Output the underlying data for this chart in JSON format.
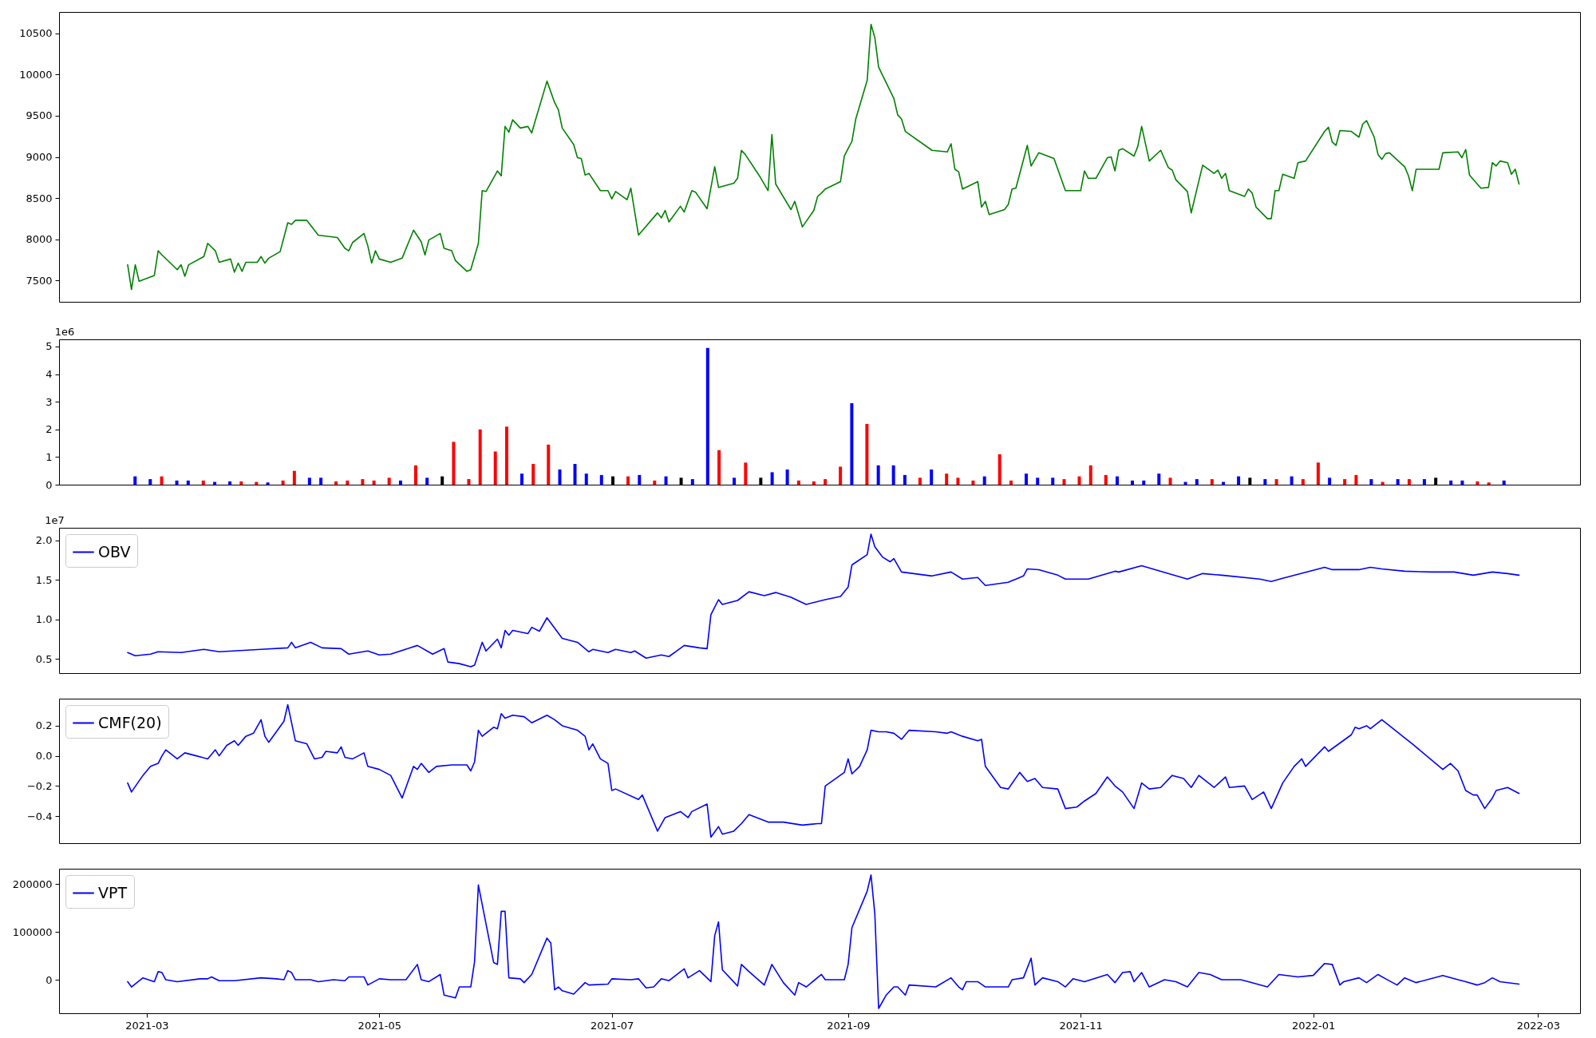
{
  "chart_data": [
    {
      "type": "line",
      "xlim": [
        "2021-02-06",
        "2022-03-12"
      ],
      "ylim": [
        7240,
        10760
      ],
      "yticks": [
        7500,
        8000,
        8500,
        9000,
        9500,
        10000,
        10500
      ],
      "tick_labels": "y",
      "x": [
        "2021-02-24",
        "2021-02-25",
        "2021-02-26",
        "2021-02-27",
        "2021-03-03",
        "2021-03-04",
        "2021-03-05",
        "2021-03-09",
        "2021-03-10",
        "2021-03-11",
        "2021-03-12",
        "2021-03-16",
        "2021-03-17",
        "2021-03-19",
        "2021-03-20",
        "2021-03-23",
        "2021-03-24",
        "2021-03-25",
        "2021-03-26",
        "2021-03-27",
        "2021-03-30",
        "2021-03-31",
        "2021-04-01",
        "2021-04-02",
        "2021-04-05",
        "2021-04-07",
        "2021-04-08",
        "2021-04-09",
        "2021-04-12",
        "2021-04-15",
        "2021-04-20",
        "2021-04-22",
        "2021-04-23",
        "2021-04-24",
        "2021-04-27",
        "2021-04-28",
        "2021-04-29",
        "2021-04-30",
        "2021-05-01",
        "2021-05-04",
        "2021-05-07",
        "2021-05-10",
        "2021-05-12",
        "2021-05-13",
        "2021-05-14",
        "2021-05-17",
        "2021-05-18",
        "2021-05-20",
        "2021-05-21",
        "2021-05-24",
        "2021-05-25",
        "2021-05-27",
        "2021-05-28",
        "2021-05-29",
        "2021-06-01",
        "2021-06-02",
        "2021-06-03",
        "2021-06-04",
        "2021-06-05",
        "2021-06-07",
        "2021-06-09",
        "2021-06-10",
        "2021-06-11",
        "2021-06-14",
        "2021-06-16",
        "2021-06-17",
        "2021-06-18",
        "2021-06-21",
        "2021-06-22",
        "2021-06-23",
        "2021-06-24",
        "2021-06-25",
        "2021-06-28",
        "2021-06-30",
        "2021-07-01",
        "2021-07-02",
        "2021-07-05",
        "2021-07-06",
        "2021-07-08",
        "2021-07-13",
        "2021-07-14",
        "2021-07-15",
        "2021-07-16",
        "2021-07-19",
        "2021-07-20",
        "2021-07-22",
        "2021-07-23",
        "2021-07-26",
        "2021-07-28",
        "2021-07-29",
        "2021-08-02",
        "2021-08-03",
        "2021-08-04",
        "2021-08-05",
        "2021-08-09",
        "2021-08-11",
        "2021-08-12",
        "2021-08-13",
        "2021-08-17",
        "2021-08-18",
        "2021-08-20",
        "2021-08-23",
        "2021-08-24",
        "2021-08-25",
        "2021-08-26",
        "2021-08-30",
        "2021-08-31",
        "2021-09-02",
        "2021-09-03",
        "2021-09-06",
        "2021-09-07",
        "2021-09-08",
        "2021-09-09",
        "2021-09-13",
        "2021-09-14",
        "2021-09-15",
        "2021-09-16",
        "2021-09-23",
        "2021-09-27",
        "2021-09-28",
        "2021-09-29",
        "2021-09-30",
        "2021-10-01",
        "2021-10-05",
        "2021-10-06",
        "2021-10-07",
        "2021-10-08",
        "2021-10-12",
        "2021-10-13",
        "2021-10-14",
        "2021-10-15",
        "2021-10-18",
        "2021-10-19",
        "2021-10-21",
        "2021-10-25",
        "2021-10-28",
        "2021-11-01",
        "2021-11-02",
        "2021-11-03",
        "2021-11-05",
        "2021-11-08",
        "2021-11-09",
        "2021-11-10",
        "2021-11-11",
        "2021-11-12",
        "2021-11-15",
        "2021-11-16",
        "2021-11-17",
        "2021-11-19",
        "2021-11-22",
        "2021-11-24",
        "2021-11-25",
        "2021-11-26",
        "2021-11-29",
        "2021-11-30",
        "2021-12-03",
        "2021-12-06",
        "2021-12-07",
        "2021-12-08",
        "2021-12-09",
        "2021-12-10",
        "2021-12-14",
        "2021-12-15",
        "2021-12-16",
        "2021-12-17",
        "2021-12-20",
        "2021-12-21",
        "2021-12-22",
        "2021-12-23",
        "2021-12-24",
        "2021-12-27",
        "2021-12-28",
        "2021-12-30",
        "2022-01-04",
        "2022-01-05",
        "2022-01-06",
        "2022-01-07",
        "2022-01-08",
        "2022-01-11",
        "2022-01-13",
        "2022-01-14",
        "2022-01-15",
        "2022-01-17",
        "2022-01-18",
        "2022-01-19",
        "2022-01-20",
        "2022-01-21",
        "2022-01-25",
        "2022-01-26",
        "2022-01-27",
        "2022-01-28",
        "2022-02-03",
        "2022-02-04",
        "2022-02-08",
        "2022-02-09",
        "2022-02-10",
        "2022-02-11",
        "2022-02-14",
        "2022-02-16",
        "2022-02-17",
        "2022-02-18",
        "2022-02-19",
        "2022-02-21",
        "2022-02-22",
        "2022-02-23",
        "2022-02-24"
      ],
      "series": [
        {
          "color": "#008000",
          "values": [
            7690,
            7390,
            7690,
            7490,
            7560,
            7860,
            7810,
            7630,
            7690,
            7550,
            7690,
            7790,
            7950,
            7860,
            7720,
            7760,
            7600,
            7710,
            7610,
            7720,
            7720,
            7790,
            7710,
            7770,
            7850,
            8200,
            8180,
            8230,
            8230,
            8050,
            8020,
            7890,
            7860,
            7960,
            8070,
            7920,
            7710,
            7860,
            7760,
            7720,
            7770,
            8110,
            7970,
            7810,
            7990,
            8070,
            7890,
            7860,
            7740,
            7610,
            7630,
            7950,
            8590,
            8580,
            8830,
            8770,
            9370,
            9300,
            9450,
            9350,
            9370,
            9290,
            9450,
            9920,
            9660,
            9570,
            9350,
            9150,
            8990,
            8980,
            8780,
            8800,
            8590,
            8590,
            8490,
            8580,
            8480,
            8620,
            8050,
            8320,
            8260,
            8350,
            8210,
            8400,
            8330,
            8590,
            8570,
            8370,
            8880,
            8630,
            8680,
            8740,
            9080,
            9030,
            8750,
            8590,
            9270,
            8670,
            8360,
            8460,
            8150,
            8350,
            8520,
            8560,
            8610,
            8700,
            9010,
            9190,
            9460,
            9930,
            10610,
            10450,
            10090,
            9710,
            9510,
            9460,
            9310,
            9080,
            9060,
            9160,
            8850,
            8820,
            8610,
            8700,
            8390,
            8460,
            8300,
            8360,
            8420,
            8610,
            8620,
            9140,
            8890,
            9050,
            8980,
            8590,
            8590,
            8830,
            8740,
            8740,
            8990,
            9000,
            8830,
            9080,
            9100,
            9010,
            9130,
            9370,
            8950,
            9080,
            8870,
            8840,
            8720,
            8580,
            8320,
            8900,
            8800,
            8840,
            8740,
            8800,
            8590,
            8520,
            8610,
            8560,
            8390,
            8250,
            8250,
            8590,
            8590,
            8790,
            8740,
            8930,
            8950,
            9310,
            9360,
            9180,
            9140,
            9320,
            9310,
            9240,
            9400,
            9440,
            9240,
            9030,
            8970,
            9040,
            9050,
            8880,
            8770,
            8590,
            8850,
            8850,
            9050,
            9060,
            8990,
            9090,
            8780,
            8620,
            8630,
            8930,
            8890,
            8950,
            8930,
            8790,
            8850,
            8670
          ]
        }
      ]
    },
    {
      "type": "bar",
      "xlim": [
        "2021-02-06",
        "2022-03-12"
      ],
      "ylim": [
        0,
        5.26
      ],
      "yticks": [
        0,
        1,
        2,
        3,
        4,
        5
      ],
      "tick_labels": "y",
      "annotations": [
        "1e6"
      ],
      "x": [
        "2021-02-25",
        "2021-03-01",
        "2021-03-04",
        "2021-03-08",
        "2021-03-11",
        "2021-03-15",
        "2021-03-18",
        "2021-03-22",
        "2021-03-25",
        "2021-03-29",
        "2021-04-01",
        "2021-04-05",
        "2021-04-08",
        "2021-04-12",
        "2021-04-15",
        "2021-04-19",
        "2021-04-22",
        "2021-04-26",
        "2021-04-29",
        "2021-05-03",
        "2021-05-06",
        "2021-05-10",
        "2021-05-13",
        "2021-05-17",
        "2021-05-20",
        "2021-05-24",
        "2021-05-27",
        "2021-05-31",
        "2021-06-03",
        "2021-06-07",
        "2021-06-10",
        "2021-06-14",
        "2021-06-17",
        "2021-06-21",
        "2021-06-24",
        "2021-06-28",
        "2021-07-01",
        "2021-07-05",
        "2021-07-08",
        "2021-07-12",
        "2021-07-15",
        "2021-07-19",
        "2021-07-22",
        "2021-07-26",
        "2021-07-29",
        "2021-08-02",
        "2021-08-05",
        "2021-08-09",
        "2021-08-12",
        "2021-08-16",
        "2021-08-19",
        "2021-08-23",
        "2021-08-26",
        "2021-08-30",
        "2021-09-02",
        "2021-09-06",
        "2021-09-09",
        "2021-09-13",
        "2021-09-16",
        "2021-09-20",
        "2021-09-23",
        "2021-09-27",
        "2021-09-30",
        "2021-10-04",
        "2021-10-07",
        "2021-10-11",
        "2021-10-14",
        "2021-10-18",
        "2021-10-21",
        "2021-10-25",
        "2021-10-28",
        "2021-11-01",
        "2021-11-04",
        "2021-11-08",
        "2021-11-11",
        "2021-11-15",
        "2021-11-18",
        "2021-11-22",
        "2021-11-25",
        "2021-11-29",
        "2021-12-02",
        "2021-12-06",
        "2021-12-09",
        "2021-12-13",
        "2021-12-16",
        "2021-12-20",
        "2021-12-23",
        "2021-12-27",
        "2021-12-30",
        "2022-01-03",
        "2022-01-06",
        "2022-01-10",
        "2022-01-13",
        "2022-01-17",
        "2022-01-20",
        "2022-01-24",
        "2022-01-27",
        "2022-01-31",
        "2022-02-03",
        "2022-02-07",
        "2022-02-10",
        "2022-02-14",
        "2022-02-17",
        "2022-02-21"
      ],
      "values": [
        0.3,
        0.2,
        0.3,
        0.15,
        0.15,
        0.15,
        0.1,
        0.12,
        0.12,
        0.1,
        0.08,
        0.15,
        0.5,
        0.25,
        0.25,
        0.12,
        0.15,
        0.2,
        0.15,
        0.25,
        0.15,
        0.7,
        0.25,
        0.3,
        1.55,
        0.2,
        2.0,
        1.2,
        2.1,
        0.4,
        0.75,
        1.45,
        0.55,
        0.75,
        0.4,
        0.35,
        0.3,
        0.3,
        0.35,
        0.15,
        0.3,
        0.25,
        0.2,
        4.95,
        1.25,
        0.25,
        0.8,
        0.25,
        0.45,
        0.55,
        0.15,
        0.12,
        0.2,
        0.65,
        2.95,
        2.2,
        0.7,
        0.7,
        0.35,
        0.25,
        0.55,
        0.4,
        0.25,
        0.15,
        0.3,
        1.1,
        0.15,
        0.4,
        0.25,
        0.25,
        0.2,
        0.3,
        0.7,
        0.35,
        0.3,
        0.15,
        0.15,
        0.4,
        0.25,
        0.1,
        0.2,
        0.2,
        0.1,
        0.3,
        0.25,
        0.2,
        0.2,
        0.3,
        0.2,
        0.8,
        0.25,
        0.2,
        0.35,
        0.2,
        0.1,
        0.2,
        0.2,
        0.2,
        0.25,
        0.15,
        0.15,
        0.12,
        0.08,
        0.15
      ],
      "colors": [
        "#0000ff",
        "#0000ff",
        "#ff0000",
        "#0000ff",
        "#0000ff",
        "#ff0000",
        "#0000ff",
        "#0000ff",
        "#ff0000",
        "#ff0000",
        "#0000ff",
        "#ff0000",
        "#ff0000",
        "#0000ff",
        "#0000ff",
        "#ff0000",
        "#ff0000",
        "#ff0000",
        "#ff0000",
        "#ff0000",
        "#0000ff",
        "#ff0000",
        "#0000ff",
        "#000000",
        "#ff0000",
        "#ff0000",
        "#ff0000",
        "#ff0000",
        "#ff0000",
        "#0000ff",
        "#ff0000",
        "#ff0000",
        "#0000ff",
        "#0000ff",
        "#0000ff",
        "#0000ff",
        "#000000",
        "#ff0000",
        "#0000ff",
        "#ff0000",
        "#0000ff",
        "#000000",
        "#0000ff",
        "#0000ff",
        "#ff0000",
        "#0000ff",
        "#ff0000",
        "#000000",
        "#0000ff",
        "#0000ff",
        "#ff0000",
        "#ff0000",
        "#ff0000",
        "#ff0000",
        "#0000ff",
        "#ff0000",
        "#0000ff",
        "#0000ff",
        "#0000ff",
        "#ff0000",
        "#0000ff",
        "#ff0000",
        "#ff0000",
        "#ff0000",
        "#0000ff",
        "#ff0000",
        "#ff0000",
        "#0000ff",
        "#0000ff",
        "#0000ff",
        "#ff0000",
        "#ff0000",
        "#ff0000",
        "#ff0000",
        "#0000ff",
        "#0000ff",
        "#0000ff",
        "#0000ff",
        "#ff0000",
        "#0000ff",
        "#0000ff",
        "#ff0000",
        "#0000ff",
        "#0000ff",
        "#000000",
        "#0000ff",
        "#ff0000",
        "#0000ff",
        "#ff0000",
        "#ff0000",
        "#0000ff",
        "#ff0000",
        "#ff0000",
        "#0000ff",
        "#ff0000",
        "#0000ff",
        "#ff0000",
        "#0000ff",
        "#000000",
        "#0000ff",
        "#0000ff",
        "#ff0000",
        "#ff0000",
        "#0000ff"
      ]
    },
    {
      "type": "line",
      "xlim": [
        "2021-02-06",
        "2022-03-12"
      ],
      "ylim": [
        0.32,
        2.16
      ],
      "yticks": [
        0.5,
        {
          "value": 1,
          "label": "1.0"
        },
        1.5,
        {
          "value": 2,
          "label": "2.0"
        }
      ],
      "tick_labels": "y",
      "annotations": [
        "1e7"
      ],
      "legend": "top left",
      "x": [
        "2021-02-24",
        "2021-02-26",
        "2021-02-28",
        "2021-03-02",
        "2021-03-04",
        "2021-03-10",
        "2021-03-16",
        "2021-03-20",
        "2021-03-31",
        "2021-04-07",
        "2021-04-08",
        "2021-04-09",
        "2021-04-13",
        "2021-04-16",
        "2021-04-21",
        "2021-04-23",
        "2021-04-28",
        "2021-05-01",
        "2021-05-04",
        "2021-05-11",
        "2021-05-15",
        "2021-05-18",
        "2021-05-19",
        "2021-05-22",
        "2021-05-25",
        "2021-05-26",
        "2021-05-28",
        "2021-05-29",
        "2021-06-01",
        "2021-06-02",
        "2021-06-03",
        "2021-06-04",
        "2021-06-05",
        "2021-06-09",
        "2021-06-10",
        "2021-06-12",
        "2021-06-14",
        "2021-06-18",
        "2021-06-22",
        "2021-06-25",
        "2021-06-26",
        "2021-06-30",
        "2021-07-02",
        "2021-07-06",
        "2021-07-07",
        "2021-07-10",
        "2021-07-14",
        "2021-07-16",
        "2021-07-18",
        "2021-07-20",
        "2021-07-24",
        "2021-07-26",
        "2021-07-27",
        "2021-07-29",
        "2021-07-30",
        "2021-08-03",
        "2021-08-06",
        "2021-08-10",
        "2021-08-13",
        "2021-08-17",
        "2021-08-21",
        "2021-08-26",
        "2021-08-30",
        "2021-09-01",
        "2021-09-02",
        "2021-09-06",
        "2021-09-07",
        "2021-09-08",
        "2021-09-10",
        "2021-09-12",
        "2021-09-13",
        "2021-09-15",
        "2021-09-23",
        "2021-09-28",
        "2021-10-01",
        "2021-10-05",
        "2021-10-07",
        "2021-10-13",
        "2021-10-17",
        "2021-10-18",
        "2021-10-21",
        "2021-10-26",
        "2021-10-28",
        "2021-11-03",
        "2021-11-10",
        "2021-11-11",
        "2021-11-17",
        "2021-11-22",
        "2021-11-29",
        "2021-12-03",
        "2021-12-08",
        "2021-12-18",
        "2021-12-21",
        "2021-12-24",
        "2022-01-04",
        "2022-01-06",
        "2022-01-13",
        "2022-01-16",
        "2022-01-19",
        "2022-01-25",
        "2022-02-01",
        "2022-02-07",
        "2022-02-12",
        "2022-02-17",
        "2022-02-21",
        "2022-02-24"
      ],
      "series": [
        {
          "name": "OBV",
          "color": "#0000ff",
          "values": [
            0.58,
            0.54,
            0.55,
            0.56,
            0.59,
            0.58,
            0.62,
            0.59,
            0.62,
            0.64,
            0.71,
            0.64,
            0.71,
            0.64,
            0.63,
            0.56,
            0.6,
            0.55,
            0.56,
            0.67,
            0.56,
            0.63,
            0.46,
            0.44,
            0.4,
            0.42,
            0.71,
            0.6,
            0.75,
            0.64,
            0.86,
            0.8,
            0.86,
            0.82,
            0.9,
            0.85,
            1.02,
            0.76,
            0.71,
            0.59,
            0.62,
            0.58,
            0.62,
            0.58,
            0.6,
            0.51,
            0.55,
            0.53,
            0.6,
            0.67,
            0.64,
            0.63,
            1.06,
            1.25,
            1.19,
            1.24,
            1.35,
            1.3,
            1.34,
            1.28,
            1.19,
            1.25,
            1.29,
            1.41,
            1.69,
            1.82,
            2.08,
            1.92,
            1.79,
            1.73,
            1.77,
            1.6,
            1.55,
            1.6,
            1.51,
            1.53,
            1.43,
            1.47,
            1.55,
            1.64,
            1.63,
            1.56,
            1.51,
            1.51,
            1.61,
            1.6,
            1.68,
            1.61,
            1.51,
            1.58,
            1.56,
            1.51,
            1.48,
            1.52,
            1.66,
            1.63,
            1.63,
            1.66,
            1.64,
            1.61,
            1.6,
            1.6,
            1.56,
            1.6,
            1.58,
            1.56
          ]
        }
      ]
    },
    {
      "type": "line",
      "xlim": [
        "2021-02-06",
        "2022-03-12"
      ],
      "ylim": [
        -0.58,
        0.38
      ],
      "yticks": [
        {
          "value": -0.4,
          "label": "−0.4"
        },
        {
          "value": -0.2,
          "label": "−0.2"
        },
        {
          "value": 0,
          "label": "0.0"
        },
        0.2
      ],
      "tick_labels": "y",
      "legend": "top left",
      "x": [
        "2021-02-24",
        "2021-02-25",
        "2021-02-28",
        "2021-03-02",
        "2021-03-04",
        "2021-03-05",
        "2021-03-06",
        "2021-03-09",
        "2021-03-11",
        "2021-03-14",
        "2021-03-17",
        "2021-03-19",
        "2021-03-20",
        "2021-03-22",
        "2021-03-24",
        "2021-03-25",
        "2021-03-27",
        "2021-03-29",
        "2021-03-31",
        "2021-04-01",
        "2021-04-02",
        "2021-04-06",
        "2021-04-07",
        "2021-04-09",
        "2021-04-12",
        "2021-04-14",
        "2021-04-16",
        "2021-04-17",
        "2021-04-20",
        "2021-04-21",
        "2021-04-22",
        "2021-04-24",
        "2021-04-27",
        "2021-04-28",
        "2021-05-01",
        "2021-05-04",
        "2021-05-07",
        "2021-05-10",
        "2021-05-11",
        "2021-05-12",
        "2021-05-14",
        "2021-05-16",
        "2021-05-20",
        "2021-05-24",
        "2021-05-25",
        "2021-05-26",
        "2021-05-27",
        "2021-05-28",
        "2021-05-31",
        "2021-06-01",
        "2021-06-02",
        "2021-06-03",
        "2021-06-05",
        "2021-06-08",
        "2021-06-10",
        "2021-06-14",
        "2021-06-16",
        "2021-06-18",
        "2021-06-22",
        "2021-06-24",
        "2021-06-25",
        "2021-06-26",
        "2021-06-28",
        "2021-06-30",
        "2021-07-01",
        "2021-07-02",
        "2021-07-08",
        "2021-07-09",
        "2021-07-13",
        "2021-07-15",
        "2021-07-17",
        "2021-07-19",
        "2021-07-21",
        "2021-07-22",
        "2021-07-26",
        "2021-07-27",
        "2021-07-29",
        "2021-07-30",
        "2021-08-02",
        "2021-08-04",
        "2021-08-06",
        "2021-08-11",
        "2021-08-15",
        "2021-08-20",
        "2021-08-24",
        "2021-08-25",
        "2021-08-26",
        "2021-08-31",
        "2021-09-01",
        "2021-09-02",
        "2021-09-04",
        "2021-09-06",
        "2021-09-07",
        "2021-09-09",
        "2021-09-11",
        "2021-09-13",
        "2021-09-15",
        "2021-09-17",
        "2021-09-24",
        "2021-09-27",
        "2021-09-28",
        "2021-10-01",
        "2021-10-05",
        "2021-10-06",
        "2021-10-07",
        "2021-10-11",
        "2021-10-13",
        "2021-10-16",
        "2021-10-18",
        "2021-10-20",
        "2021-10-22",
        "2021-10-26",
        "2021-10-28",
        "2021-10-31",
        "2021-11-02",
        "2021-11-05",
        "2021-11-08",
        "2021-11-10",
        "2021-11-12",
        "2021-11-15",
        "2021-11-17",
        "2021-11-19",
        "2021-11-22",
        "2021-11-25",
        "2021-11-28",
        "2021-11-30",
        "2021-12-02",
        "2021-12-06",
        "2021-12-09",
        "2021-12-10",
        "2021-12-14",
        "2021-12-16",
        "2021-12-19",
        "2021-12-21",
        "2021-12-24",
        "2021-12-27",
        "2021-12-29",
        "2021-12-30",
        "2022-01-04",
        "2022-01-05",
        "2022-01-11",
        "2022-01-12",
        "2022-01-13",
        "2022-01-15",
        "2022-01-16",
        "2022-01-19",
        "2022-01-20",
        "2022-01-25",
        "2022-01-27",
        "2022-02-04",
        "2022-02-06",
        "2022-02-08",
        "2022-02-10",
        "2022-02-12",
        "2022-02-13",
        "2022-02-15",
        "2022-02-17",
        "2022-02-18",
        "2022-02-21",
        "2022-02-24"
      ],
      "series": [
        {
          "name": "CMF(20)",
          "color": "#0000ff",
          "values": [
            -0.18,
            -0.24,
            -0.13,
            -0.07,
            -0.05,
            0.0,
            0.04,
            -0.02,
            0.02,
            0.0,
            -0.02,
            0.04,
            0.0,
            0.07,
            0.1,
            0.07,
            0.13,
            0.15,
            0.24,
            0.13,
            0.09,
            0.23,
            0.34,
            0.1,
            0.08,
            -0.02,
            -0.01,
            0.03,
            0.02,
            0.06,
            -0.01,
            -0.02,
            0.02,
            -0.07,
            -0.09,
            -0.13,
            -0.28,
            -0.07,
            -0.09,
            -0.05,
            -0.11,
            -0.07,
            -0.06,
            -0.06,
            -0.1,
            -0.04,
            0.17,
            0.13,
            0.19,
            0.18,
            0.28,
            0.25,
            0.27,
            0.26,
            0.22,
            0.27,
            0.24,
            0.2,
            0.17,
            0.13,
            0.04,
            0.08,
            -0.02,
            -0.05,
            -0.23,
            -0.22,
            -0.29,
            -0.26,
            -0.5,
            -0.41,
            -0.39,
            -0.37,
            -0.41,
            -0.37,
            -0.32,
            -0.54,
            -0.47,
            -0.52,
            -0.5,
            -0.45,
            -0.39,
            -0.44,
            -0.44,
            -0.46,
            -0.45,
            -0.45,
            -0.2,
            -0.11,
            -0.02,
            -0.12,
            -0.07,
            0.04,
            0.17,
            0.16,
            0.16,
            0.15,
            0.11,
            0.17,
            0.16,
            0.15,
            0.16,
            0.13,
            0.1,
            0.11,
            -0.07,
            -0.21,
            -0.22,
            -0.11,
            -0.17,
            -0.15,
            -0.21,
            -0.22,
            -0.35,
            -0.34,
            -0.3,
            -0.25,
            -0.14,
            -0.2,
            -0.24,
            -0.35,
            -0.18,
            -0.22,
            -0.21,
            -0.13,
            -0.15,
            -0.21,
            -0.13,
            -0.21,
            -0.14,
            -0.21,
            -0.2,
            -0.29,
            -0.24,
            -0.35,
            -0.18,
            -0.07,
            -0.02,
            -0.07,
            0.06,
            0.03,
            0.14,
            0.19,
            0.18,
            0.2,
            0.18,
            0.24,
            0.22,
            0.12,
            0.08,
            -0.09,
            -0.05,
            -0.1,
            -0.23,
            -0.26,
            -0.26,
            -0.35,
            -0.28,
            -0.23,
            -0.21,
            -0.25
          ]
        }
      ]
    },
    {
      "type": "line",
      "xlim": [
        "2021-02-06",
        "2022-03-12"
      ],
      "ylim": [
        -70000,
        232000
      ],
      "yticks": [
        0,
        100000,
        200000
      ],
      "legend": "top left",
      "xticks": [
        "2021-03",
        "2021-05",
        "2021-07",
        "2021-09",
        "2021-11",
        "2022-01",
        "2022-03"
      ],
      "x": [
        "2021-02-24",
        "2021-02-25",
        "2021-02-28",
        "2021-03-03",
        "2021-03-04",
        "2021-03-05",
        "2021-03-06",
        "2021-03-09",
        "2021-03-15",
        "2021-03-17",
        "2021-03-18",
        "2021-03-20",
        "2021-03-24",
        "2021-03-31",
        "2021-04-04",
        "2021-04-06",
        "2021-04-07",
        "2021-04-08",
        "2021-04-09",
        "2021-04-13",
        "2021-04-15",
        "2021-04-19",
        "2021-04-22",
        "2021-04-23",
        "2021-04-27",
        "2021-04-28",
        "2021-05-01",
        "2021-05-04",
        "2021-05-08",
        "2021-05-11",
        "2021-05-12",
        "2021-05-14",
        "2021-05-17",
        "2021-05-18",
        "2021-05-21",
        "2021-05-22",
        "2021-05-25",
        "2021-05-26",
        "2021-05-27",
        "2021-05-31",
        "2021-06-01",
        "2021-06-02",
        "2021-06-03",
        "2021-06-04",
        "2021-06-07",
        "2021-06-08",
        "2021-06-10",
        "2021-06-14",
        "2021-06-15",
        "2021-06-16",
        "2021-06-17",
        "2021-06-18",
        "2021-06-21",
        "2021-06-24",
        "2021-06-25",
        "2021-06-30",
        "2021-07-01",
        "2021-07-06",
        "2021-07-08",
        "2021-07-10",
        "2021-07-12",
        "2021-07-14",
        "2021-07-16",
        "2021-07-20",
        "2021-07-21",
        "2021-07-24",
        "2021-07-27",
        "2021-07-28",
        "2021-07-29",
        "2021-07-30",
        "2021-08-03",
        "2021-08-04",
        "2021-08-06",
        "2021-08-10",
        "2021-08-12",
        "2021-08-15",
        "2021-08-18",
        "2021-08-19",
        "2021-08-21",
        "2021-08-25",
        "2021-08-26",
        "2021-08-31",
        "2021-09-01",
        "2021-09-02",
        "2021-09-06",
        "2021-09-07",
        "2021-09-08",
        "2021-09-09",
        "2021-09-11",
        "2021-09-13",
        "2021-09-14",
        "2021-09-16",
        "2021-09-17",
        "2021-09-24",
        "2021-09-28",
        "2021-09-30",
        "2021-10-01",
        "2021-10-02",
        "2021-10-05",
        "2021-10-07",
        "2021-10-13",
        "2021-10-14",
        "2021-10-17",
        "2021-10-19",
        "2021-10-20",
        "2021-10-22",
        "2021-10-26",
        "2021-10-28",
        "2021-10-30",
        "2021-11-02",
        "2021-11-08",
        "2021-11-10",
        "2021-11-12",
        "2021-11-14",
        "2021-11-15",
        "2021-11-17",
        "2021-11-19",
        "2021-11-23",
        "2021-11-26",
        "2021-11-29",
        "2021-12-02",
        "2021-12-05",
        "2021-12-08",
        "2021-12-13",
        "2021-12-15",
        "2021-12-20",
        "2021-12-23",
        "2021-12-28",
        "2022-01-01",
        "2022-01-04",
        "2022-01-06",
        "2022-01-08",
        "2022-01-09",
        "2022-01-13",
        "2022-01-15",
        "2022-01-18",
        "2022-01-20",
        "2022-01-23",
        "2022-01-25",
        "2022-01-28",
        "2022-02-04",
        "2022-02-08",
        "2022-02-10",
        "2022-02-13",
        "2022-02-15",
        "2022-02-17",
        "2022-02-19",
        "2022-02-24"
      ],
      "series": [
        {
          "name": "VPT",
          "color": "#0000ff",
          "values": [
            -4000,
            -15000,
            4000,
            -4000,
            17000,
            15000,
            0,
            -4000,
            2000,
            2000,
            6000,
            -2000,
            -2000,
            4000,
            2000,
            0,
            19000,
            15000,
            0,
            0,
            -4000,
            0,
            -2000,
            6000,
            6000,
            -11000,
            2000,
            0,
            0,
            32000,
            0,
            -4000,
            11000,
            -32000,
            -38000,
            -15000,
            -15000,
            38000,
            198000,
            36000,
            32000,
            143000,
            143000,
            4000,
            2000,
            -6000,
            11000,
            87000,
            77000,
            -21000,
            -15000,
            -23000,
            -30000,
            -6000,
            -11000,
            -9000,
            2000,
            0,
            2000,
            -17000,
            -15000,
            2000,
            -2000,
            23000,
            4000,
            19000,
            -4000,
            92000,
            121000,
            21000,
            -13000,
            32000,
            17000,
            -11000,
            32000,
            -6000,
            -32000,
            -6000,
            -15000,
            11000,
            0,
            0,
            32000,
            109000,
            185000,
            219000,
            138000,
            -60000,
            -32000,
            -15000,
            -15000,
            -32000,
            -11000,
            -15000,
            4000,
            -15000,
            -21000,
            -4000,
            -4000,
            -15000,
            -15000,
            0,
            4000,
            45000,
            -11000,
            4000,
            -4000,
            -15000,
            2000,
            -4000,
            11000,
            -6000,
            15000,
            17000,
            -4000,
            15000,
            -15000,
            0,
            -4000,
            -15000,
            15000,
            11000,
            0,
            0,
            -4000,
            -15000,
            11000,
            6000,
            9000,
            34000,
            32000,
            -11000,
            -4000,
            4000,
            -6000,
            11000,
            2000,
            -11000,
            4000,
            -6000,
            9000,
            0,
            -4000,
            -11000,
            -6000,
            4000,
            -4000,
            -9000
          ]
        }
      ]
    }
  ]
}
